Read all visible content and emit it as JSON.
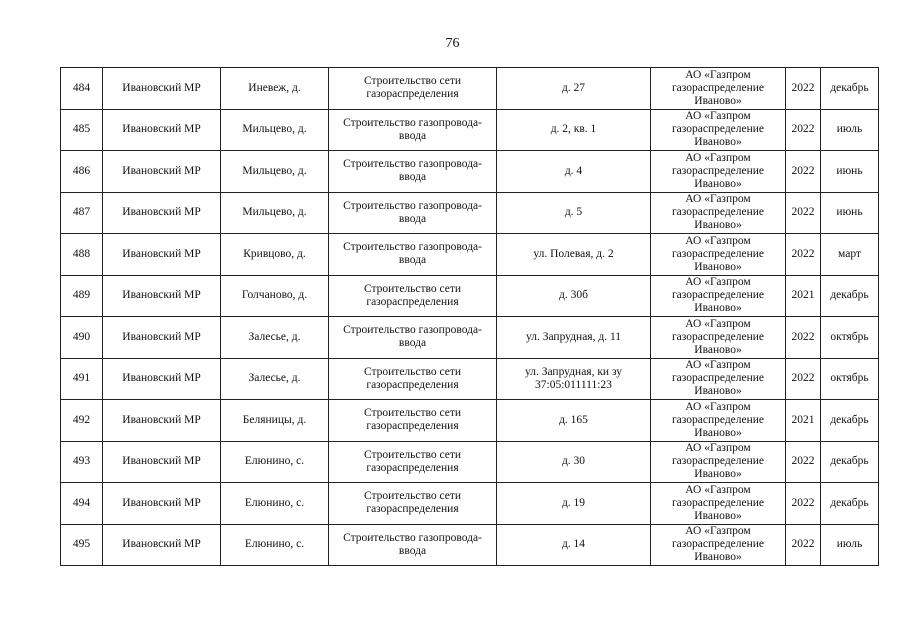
{
  "page_number": "76",
  "rows": [
    [
      "484",
      "Ивановский МР",
      "Иневеж, д.",
      "Строительство сети газораспределения",
      "д. 27",
      "АО «Газпром газораспределение Иваново»",
      "2022",
      "декабрь"
    ],
    [
      "485",
      "Ивановский МР",
      "Мильцево, д.",
      "Строительство газопровода-ввода",
      "д. 2, кв. 1",
      "АО «Газпром газораспределение Иваново»",
      "2022",
      "июль"
    ],
    [
      "486",
      "Ивановский МР",
      "Мильцево, д.",
      "Строительство газопровода-ввода",
      "д. 4",
      "АО «Газпром газораспределение Иваново»",
      "2022",
      "июнь"
    ],
    [
      "487",
      "Ивановский МР",
      "Мильцево, д.",
      "Строительство газопровода-ввода",
      "д. 5",
      "АО «Газпром газораспределение Иваново»",
      "2022",
      "июнь"
    ],
    [
      "488",
      "Ивановский МР",
      "Кривцово, д.",
      "Строительство газопровода-ввода",
      "ул. Полевая, д. 2",
      "АО «Газпром газораспределение Иваново»",
      "2022",
      "март"
    ],
    [
      "489",
      "Ивановский МР",
      "Голчаново, д.",
      "Строительство сети газораспределения",
      "д. 30б",
      "АО «Газпром газораспределение Иваново»",
      "2021",
      "декабрь"
    ],
    [
      "490",
      "Ивановский МР",
      "Залесье, д.",
      "Строительство газопровода-ввода",
      "ул. Запрудная, д. 11",
      "АО «Газпром газораспределение Иваново»",
      "2022",
      "октябрь"
    ],
    [
      "491",
      "Ивановский МР",
      "Залесье, д.",
      "Строительство сети газораспределения",
      "ул. Запрудная, ки зу 37:05:011111:23",
      "АО «Газпром газораспределение Иваново»",
      "2022",
      "октябрь"
    ],
    [
      "492",
      "Ивановский МР",
      "Беляницы, д.",
      "Строительство сети газораспределения",
      "д. 165",
      "АО «Газпром газораспределение Иваново»",
      "2021",
      "декабрь"
    ],
    [
      "493",
      "Ивановский МР",
      "Елюнино, с.",
      "Строительство сети газораспределения",
      "д. 30",
      "АО «Газпром газораспределение Иваново»",
      "2022",
      "декабрь"
    ],
    [
      "494",
      "Ивановский МР",
      "Елюнино, с.",
      "Строительство сети газораспределения",
      "д. 19",
      "АО «Газпром газораспределение Иваново»",
      "2022",
      "декабрь"
    ],
    [
      "495",
      "Ивановский МР",
      "Елюнино, с.",
      "Строительство газопровода-ввода",
      "д. 14",
      "АО «Газпром газораспределение Иваново»",
      "2022",
      "июль"
    ]
  ]
}
